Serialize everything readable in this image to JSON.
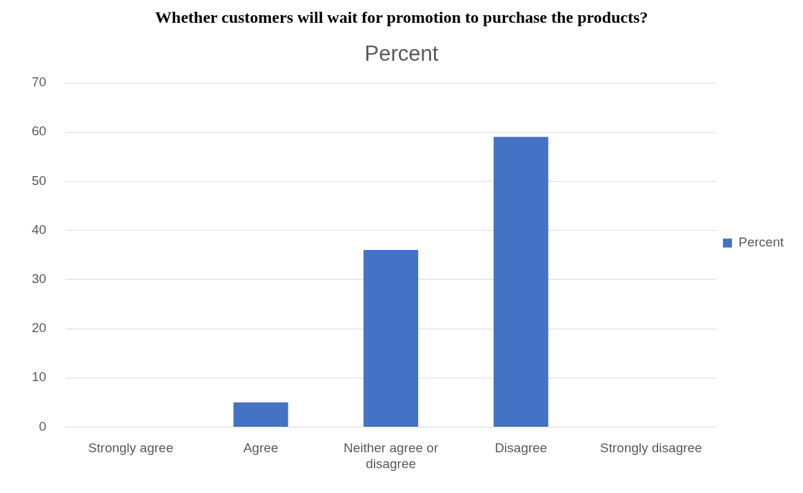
{
  "chart_data": {
    "type": "bar",
    "title": "Whether customers will wait for promotion to purchase the products?",
    "subtitle": "Percent",
    "categories": [
      "Strongly agree",
      "Agree",
      "Neither agree or disagree",
      "Disagree",
      "Strongly disagree"
    ],
    "series": [
      {
        "name": "Percent",
        "color": "#4472c4",
        "values": [
          0,
          5,
          36,
          59,
          0
        ]
      }
    ],
    "ylim": [
      0,
      70
    ],
    "yticks": [
      0,
      10,
      20,
      30,
      40,
      50,
      60,
      70
    ],
    "grid": "y",
    "legend": "right"
  }
}
